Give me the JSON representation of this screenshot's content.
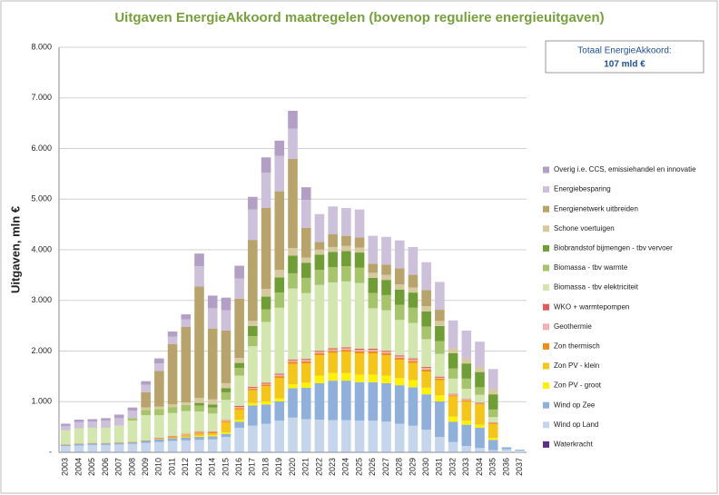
{
  "chart_data": {
    "type": "stacked_bar",
    "title": "Uitgaven EnergieAkkoord  maatregelen (bovenop reguliere energieuitgaven)",
    "y_label": "Uitgaven, mln €",
    "annotation": {
      "title": "Totaal EnergieAkkoord:",
      "value": "107 mld €"
    },
    "categories": [
      "2003",
      "2004",
      "2005",
      "2006",
      "2007",
      "2008",
      "2009",
      "2010",
      "2011",
      "2012",
      "2013",
      "2014",
      "2015",
      "2016",
      "2017",
      "2018",
      "2019",
      "2020",
      "2021",
      "2022",
      "2023",
      "2024",
      "2025",
      "2026",
      "2027",
      "2028",
      "2029",
      "2030",
      "2031",
      "2032",
      "2033",
      "2034",
      "2035",
      "2036",
      "2037"
    ],
    "ylim": [
      0,
      8000
    ],
    "yticks": [
      {
        "value": 0,
        "label": "-"
      },
      {
        "value": 1000,
        "label": "1.000"
      },
      {
        "value": 2000,
        "label": "2.000"
      },
      {
        "value": 3000,
        "label": "3.000"
      },
      {
        "value": 4000,
        "label": "4.000"
      },
      {
        "value": 5000,
        "label": "5.000"
      },
      {
        "value": 6000,
        "label": "6.000"
      },
      {
        "value": 7000,
        "label": "7.000"
      },
      {
        "value": 8000,
        "label": "8.000"
      }
    ],
    "grid": true,
    "legend": "right",
    "series": [
      {
        "name": "Waterkracht",
        "color": "#5b2d8c",
        "values": [
          5,
          5,
          5,
          5,
          5,
          5,
          5,
          5,
          5,
          5,
          5,
          5,
          5,
          5,
          5,
          5,
          5,
          5,
          5,
          5,
          5,
          5,
          5,
          5,
          5,
          5,
          5,
          5,
          5,
          5,
          5,
          5,
          5,
          0,
          0
        ]
      },
      {
        "name": "Wind op Land",
        "color": "#c5d6ec",
        "values": [
          120,
          130,
          140,
          140,
          150,
          160,
          180,
          200,
          220,
          230,
          240,
          250,
          300,
          480,
          520,
          560,
          620,
          680,
          650,
          640,
          630,
          630,
          620,
          620,
          600,
          560,
          520,
          440,
          300,
          200,
          120,
          80,
          40,
          60,
          30
        ]
      },
      {
        "name": "Wind op Zee",
        "color": "#8eb0da",
        "values": [
          20,
          30,
          30,
          30,
          30,
          30,
          40,
          50,
          50,
          60,
          60,
          60,
          60,
          120,
          400,
          380,
          380,
          580,
          620,
          720,
          780,
          780,
          760,
          760,
          760,
          760,
          760,
          700,
          700,
          400,
          420,
          400,
          200,
          40,
          20
        ]
      },
      {
        "name": "Zon PV - groot",
        "color": "#fff200",
        "values": [
          0,
          0,
          0,
          0,
          0,
          0,
          0,
          0,
          0,
          10,
          20,
          20,
          30,
          40,
          50,
          60,
          60,
          80,
          100,
          150,
          150,
          150,
          150,
          150,
          150,
          140,
          140,
          130,
          120,
          100,
          80,
          60,
          40,
          0,
          0
        ]
      },
      {
        "name": "Zon PV - klein",
        "color": "#f5c518",
        "values": [
          0,
          0,
          0,
          0,
          0,
          0,
          0,
          10,
          20,
          30,
          40,
          40,
          200,
          200,
          250,
          300,
          400,
          400,
          380,
          400,
          400,
          420,
          420,
          420,
          400,
          360,
          340,
          320,
          300,
          400,
          380,
          400,
          280,
          0,
          0
        ]
      },
      {
        "name": "Zon thermisch",
        "color": "#f08c1a",
        "values": [
          10,
          10,
          10,
          10,
          10,
          10,
          10,
          10,
          10,
          10,
          20,
          20,
          20,
          30,
          30,
          30,
          40,
          40,
          40,
          40,
          40,
          40,
          40,
          40,
          40,
          40,
          40,
          40,
          30,
          20,
          20,
          20,
          10,
          0,
          0
        ]
      },
      {
        "name": "Geothermie",
        "color": "#f2b0b0",
        "values": [
          0,
          0,
          0,
          0,
          0,
          0,
          0,
          0,
          10,
          10,
          10,
          10,
          10,
          20,
          20,
          20,
          30,
          30,
          30,
          30,
          30,
          30,
          30,
          30,
          30,
          30,
          30,
          30,
          20,
          20,
          20,
          10,
          10,
          0,
          0
        ]
      },
      {
        "name": "WKO + warmtepompen",
        "color": "#e05a5a",
        "values": [
          0,
          0,
          0,
          0,
          0,
          0,
          0,
          10,
          10,
          10,
          10,
          10,
          10,
          20,
          20,
          20,
          20,
          20,
          20,
          20,
          20,
          20,
          20,
          20,
          20,
          20,
          20,
          20,
          20,
          10,
          10,
          10,
          10,
          0,
          0
        ]
      },
      {
        "name": "Biomassa - tbv elektriciteit",
        "color": "#d3e6ad",
        "values": [
          280,
          300,
          300,
          300,
          330,
          420,
          500,
          450,
          450,
          450,
          400,
          350,
          400,
          600,
          800,
          1200,
          1300,
          1400,
          1300,
          1300,
          1300,
          1300,
          1300,
          800,
          800,
          700,
          700,
          550,
          450,
          300,
          200,
          150,
          100,
          0,
          0
        ]
      },
      {
        "name": "Biomassa - tbv warmte",
        "color": "#a6c46a",
        "values": [
          0,
          0,
          0,
          0,
          0,
          50,
          100,
          120,
          120,
          120,
          120,
          120,
          150,
          150,
          200,
          250,
          300,
          300,
          300,
          300,
          300,
          300,
          300,
          300,
          300,
          300,
          300,
          250,
          250,
          200,
          200,
          150,
          150,
          0,
          0
        ]
      },
      {
        "name": "Biobrandstof bijmengen - tbv vervoer",
        "color": "#6f9e34",
        "values": [
          0,
          0,
          0,
          0,
          0,
          0,
          0,
          0,
          0,
          0,
          50,
          60,
          80,
          100,
          200,
          250,
          300,
          350,
          300,
          300,
          300,
          300,
          300,
          300,
          300,
          300,
          300,
          300,
          300,
          300,
          300,
          300,
          300,
          0,
          0
        ]
      },
      {
        "name": "Schone voertuigen",
        "color": "#d6c99e",
        "values": [
          0,
          0,
          0,
          0,
          0,
          0,
          50,
          50,
          50,
          50,
          100,
          100,
          100,
          100,
          100,
          150,
          150,
          150,
          100,
          100,
          100,
          100,
          100,
          100,
          100,
          100,
          100,
          100,
          100,
          100,
          100,
          100,
          100,
          0,
          0
        ]
      },
      {
        "name": "Energienetwerk uitbreiden",
        "color": "#b8a46a",
        "values": [
          0,
          0,
          0,
          0,
          0,
          0,
          300,
          700,
          1190,
          1490,
          2200,
          1400,
          1040,
          1170,
          1600,
          1600,
          1550,
          1760,
          590,
          150,
          250,
          200,
          200,
          180,
          200,
          320,
          250,
          320,
          220,
          0,
          0,
          0,
          0,
          0,
          0
        ]
      },
      {
        "name": "Energiebesparing",
        "color": "#ccc0da",
        "values": [
          80,
          120,
          120,
          140,
          150,
          150,
          150,
          150,
          150,
          150,
          400,
          400,
          400,
          400,
          600,
          700,
          700,
          600,
          550,
          550,
          550,
          550,
          550,
          550,
          550,
          550,
          550,
          550,
          550,
          550,
          550,
          500,
          400,
          0,
          0
        ]
      },
      {
        "name": "Overig i.e. CCS, emissiehandel en innovatie",
        "color": "#b39fc6",
        "values": [
          50,
          50,
          50,
          50,
          70,
          60,
          70,
          100,
          100,
          100,
          250,
          250,
          250,
          250,
          250,
          300,
          300,
          350,
          250,
          0,
          0,
          0,
          0,
          0,
          0,
          0,
          0,
          0,
          0,
          0,
          0,
          0,
          0,
          0,
          0
        ]
      }
    ]
  }
}
